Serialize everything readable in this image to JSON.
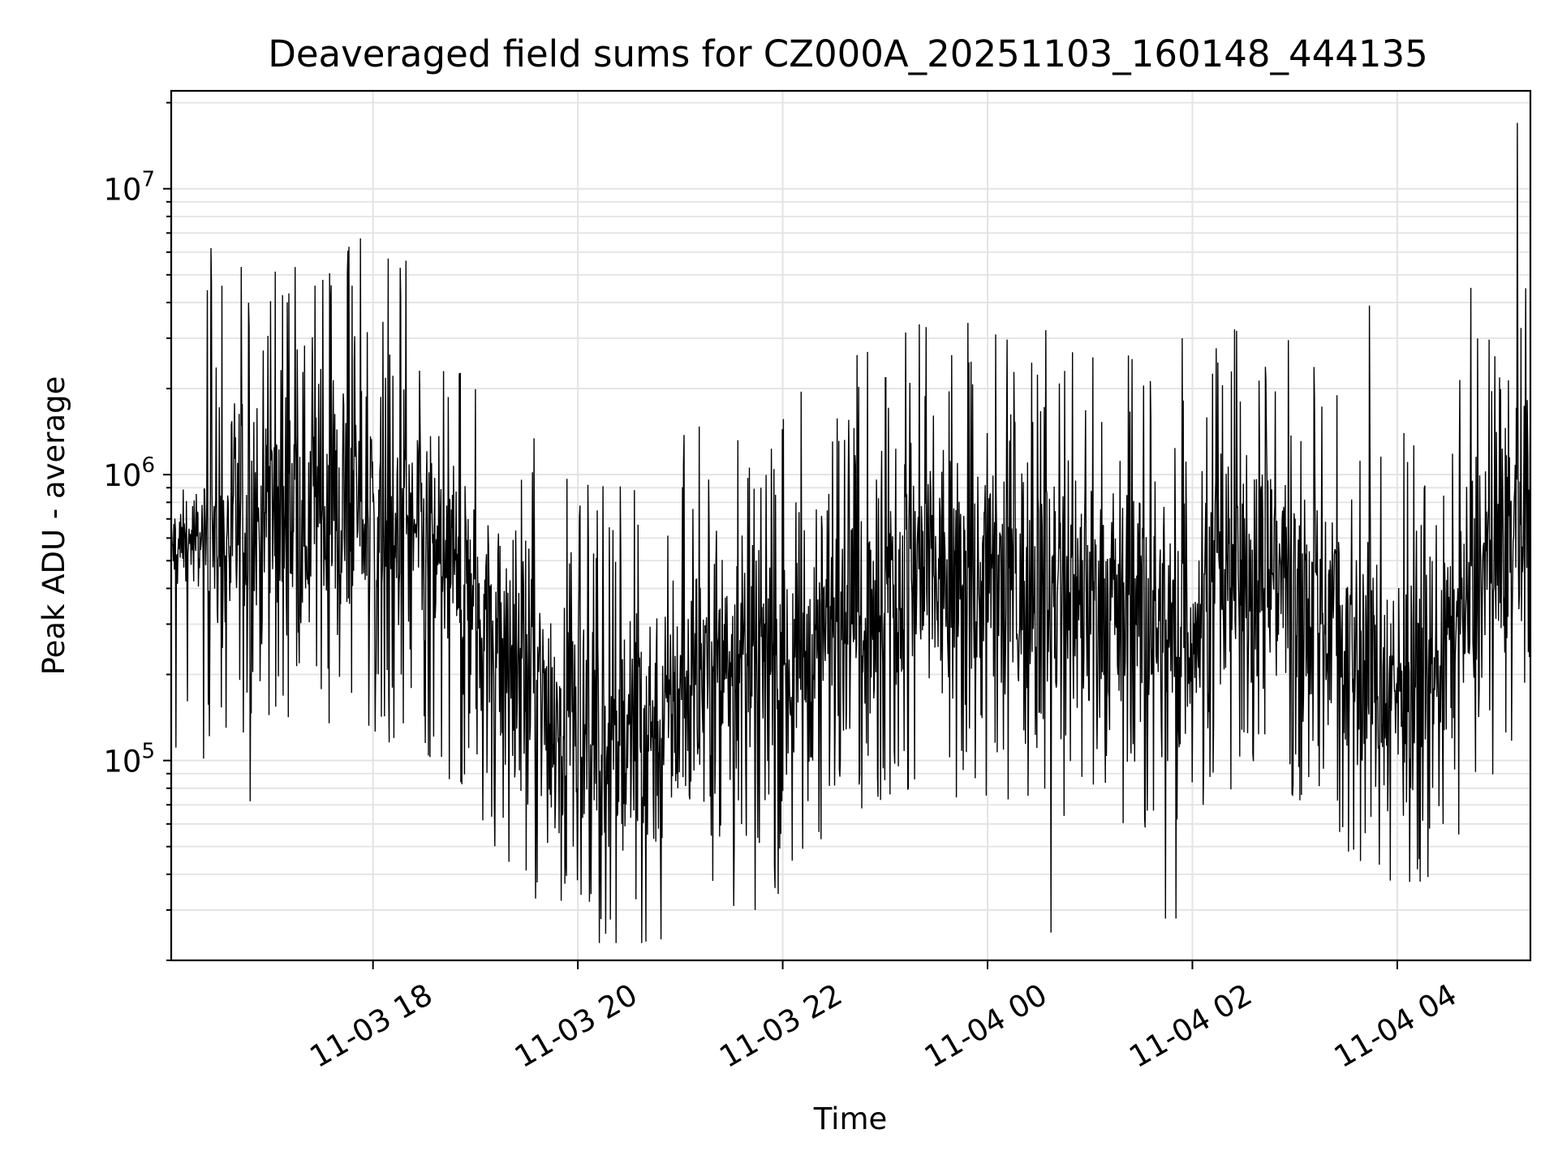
{
  "chart_data": {
    "type": "line",
    "title": "Deaveraged field sums for CZ000A_20251103_160148_444135",
    "xlabel": "Time",
    "ylabel": "Peak ADU - average",
    "yscale": "log",
    "ylim": [
      20000,
      22000000
    ],
    "xlim_hours": [
      16.03,
      29.3
    ],
    "grid": true,
    "legend": "none",
    "x_tick_labels": [
      {
        "hour": 18,
        "label": "11-03 18"
      },
      {
        "hour": 20,
        "label": "11-03 20"
      },
      {
        "hour": 22,
        "label": "11-03 22"
      },
      {
        "hour": 24,
        "label": "11-04 00"
      },
      {
        "hour": 26,
        "label": "11-04 02"
      },
      {
        "hour": 28,
        "label": "11-04 04"
      }
    ],
    "y_tick_labels": [
      {
        "value": 100000,
        "base": "10",
        "exp": "5"
      },
      {
        "value": 1000000,
        "base": "10",
        "exp": "6"
      },
      {
        "value": 10000000,
        "base": "10",
        "exp": "7"
      }
    ],
    "series": [
      {
        "name": "deaveraged field sum",
        "color": "#000000",
        "x_hours": [
          16.03,
          16.3,
          16.6,
          16.9,
          17.2,
          17.5,
          17.8,
          18.1,
          18.4,
          18.7,
          19.0,
          19.3,
          19.6,
          19.9,
          20.2,
          20.5,
          20.8,
          21.1,
          21.4,
          21.7,
          22.0,
          22.3,
          22.6,
          22.9,
          23.2,
          23.5,
          23.8,
          24.1,
          24.4,
          24.7,
          25.0,
          25.3,
          25.6,
          25.9,
          26.2,
          26.5,
          26.8,
          27.1,
          27.4,
          27.7,
          28.0,
          28.3,
          28.6,
          28.9,
          29.3
        ],
        "trend_values": [
          550000,
          600000,
          650000,
          700000,
          720000,
          750000,
          780000,
          700000,
          620000,
          500000,
          380000,
          250000,
          170000,
          130000,
          120000,
          120000,
          140000,
          180000,
          240000,
          200000,
          200000,
          280000,
          350000,
          400000,
          430000,
          420000,
          420000,
          410000,
          380000,
          360000,
          400000,
          350000,
          320000,
          250000,
          400000,
          480000,
          500000,
          420000,
          330000,
          200000,
          180000,
          200000,
          300000,
          500000,
          850000
        ],
        "spikes": [
          {
            "hour": 16.42,
            "value": 6200000
          },
          {
            "hour": 17.51,
            "value": 4800000
          },
          {
            "hour": 17.59,
            "value": 4600000
          },
          {
            "hour": 17.88,
            "value": 6700000
          },
          {
            "hour": 18.15,
            "value": 5700000
          },
          {
            "hour": 18.32,
            "value": 5600000
          },
          {
            "hour": 24.57,
            "value": 3200000
          },
          {
            "hour": 25.9,
            "value": 3000000
          },
          {
            "hour": 27.73,
            "value": 3900000
          },
          {
            "hour": 28.72,
            "value": 4500000
          },
          {
            "hour": 29.17,
            "value": 17000000
          }
        ],
        "dips": [
          {
            "hour": 16.8,
            "value": 72000
          },
          {
            "hour": 21.52,
            "value": 31000
          },
          {
            "hour": 21.73,
            "value": 30000
          },
          {
            "hour": 24.62,
            "value": 25000
          },
          {
            "hour": 25.74,
            "value": 28000
          },
          {
            "hour": 25.84,
            "value": 28000
          }
        ]
      }
    ]
  }
}
